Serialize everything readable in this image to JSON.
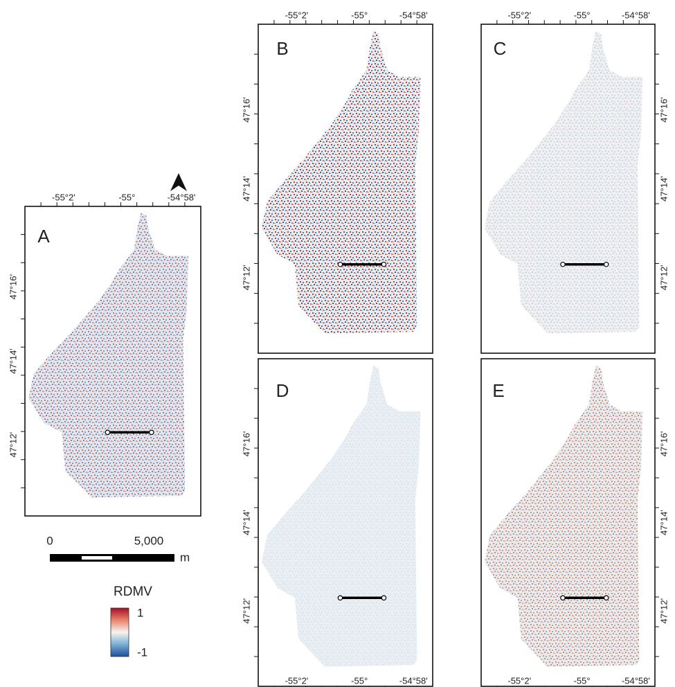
{
  "panels": [
    {
      "label": "A",
      "x_labels": [
        "-55°2'",
        "-55°",
        "-54°58'"
      ],
      "y_labels": [
        "47°16'",
        "47°14'",
        "47°12'"
      ]
    },
    {
      "label": "B",
      "x_labels": [
        "-55°2'",
        "-55°",
        "-54°58'"
      ],
      "y_labels": [
        "47°16'",
        "47°14'",
        "47°12'"
      ]
    },
    {
      "label": "C",
      "x_labels": [
        "-55°2'",
        "-55°",
        "-54°58'"
      ],
      "y_labels": [
        "47°16'",
        "47°14'",
        "47°12'"
      ]
    },
    {
      "label": "D",
      "x_labels": [
        "-55°2'",
        "-55°",
        "-54°58'"
      ],
      "y_labels": [
        "47°16'",
        "47°14'",
        "47°12'"
      ]
    },
    {
      "label": "E",
      "x_labels": [
        "-55°2'",
        "-55°",
        "-54°58'"
      ],
      "y_labels": [
        "47°16'",
        "47°14'",
        "47°12'"
      ]
    }
  ],
  "scale_bar": {
    "start": "0",
    "end": "5,000",
    "unit": "m"
  },
  "legend": {
    "title": "RDMV",
    "max": "1",
    "min": "-1"
  }
}
